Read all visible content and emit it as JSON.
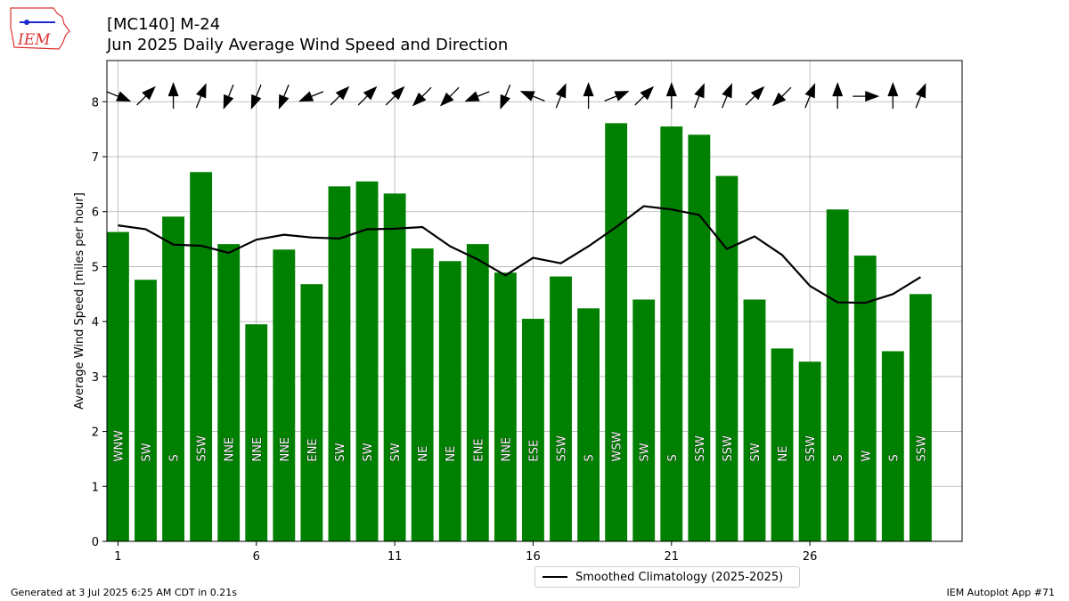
{
  "title": {
    "line1": "[MC140] M-24",
    "line2": "Jun 2025 Daily Average Wind Speed and Direction"
  },
  "footer": {
    "left": "Generated at 3 Jul 2025 6:25 AM CDT in 0.21s",
    "right": "IEM Autoplot App #71"
  },
  "logo": {
    "text": "IEM"
  },
  "colors": {
    "bars": "#008000",
    "climo": "#000000",
    "grid": "#b0b0b0"
  },
  "chart_data": {
    "type": "bar",
    "ylabel": "Average Wind Speed [miles per hour]",
    "xlim": [
      0.6,
      31.5
    ],
    "ylim": [
      0,
      8.75
    ],
    "x_ticks": [
      1,
      6,
      11,
      16,
      21,
      26
    ],
    "y_ticks": [
      0,
      1,
      2,
      3,
      4,
      5,
      6,
      7,
      8
    ],
    "grid": true,
    "legend_position": "bottom-center",
    "days": [
      1,
      2,
      3,
      4,
      5,
      6,
      7,
      8,
      9,
      10,
      11,
      12,
      13,
      14,
      15,
      16,
      17,
      18,
      19,
      20,
      21,
      22,
      23,
      24,
      25,
      26,
      27,
      28,
      29,
      30
    ],
    "wind_speed": [
      5.63,
      4.76,
      5.91,
      6.72,
      5.41,
      3.95,
      5.31,
      4.68,
      6.46,
      6.55,
      6.33,
      5.33,
      5.1,
      5.41,
      4.89,
      4.05,
      4.82,
      4.24,
      7.61,
      4.4,
      7.55,
      7.4,
      6.65,
      4.4,
      3.51,
      3.27,
      6.04,
      5.2,
      3.46,
      4.5
    ],
    "direction_labels": [
      "WNW",
      "SW",
      "S",
      "SSW",
      "NNE",
      "NNE",
      "NNE",
      "ENE",
      "SW",
      "SW",
      "SW",
      "NE",
      "NE",
      "ENE",
      "NNE",
      "ESE",
      "SSW",
      "S",
      "WSW",
      "SW",
      "S",
      "SSW",
      "SSW",
      "SW",
      "NE",
      "SSW",
      "S",
      "W",
      "S",
      "SSW"
    ],
    "direction_degrees": [
      292,
      225,
      180,
      202,
      22,
      22,
      22,
      68,
      225,
      225,
      225,
      45,
      45,
      68,
      22,
      112,
      202,
      180,
      248,
      225,
      180,
      202,
      202,
      225,
      45,
      202,
      180,
      270,
      180,
      202
    ],
    "series": [
      {
        "name": "Smoothed Climatology (2025-2025)",
        "type": "line",
        "x": [
          1,
          2,
          3,
          4,
          5,
          6,
          7,
          8,
          9,
          10,
          11,
          12,
          13,
          14,
          15,
          16,
          17,
          18,
          19,
          20,
          21,
          22,
          23,
          24,
          25,
          26,
          27,
          28,
          29,
          30
        ],
        "values": [
          5.75,
          5.68,
          5.4,
          5.38,
          5.25,
          5.49,
          5.58,
          5.53,
          5.51,
          5.68,
          5.69,
          5.72,
          5.37,
          5.13,
          4.84,
          5.16,
          5.06,
          5.37,
          5.72,
          6.1,
          6.04,
          5.94,
          5.32,
          5.55,
          5.21,
          4.65,
          4.35,
          4.34,
          4.5,
          4.81
        ]
      }
    ]
  }
}
